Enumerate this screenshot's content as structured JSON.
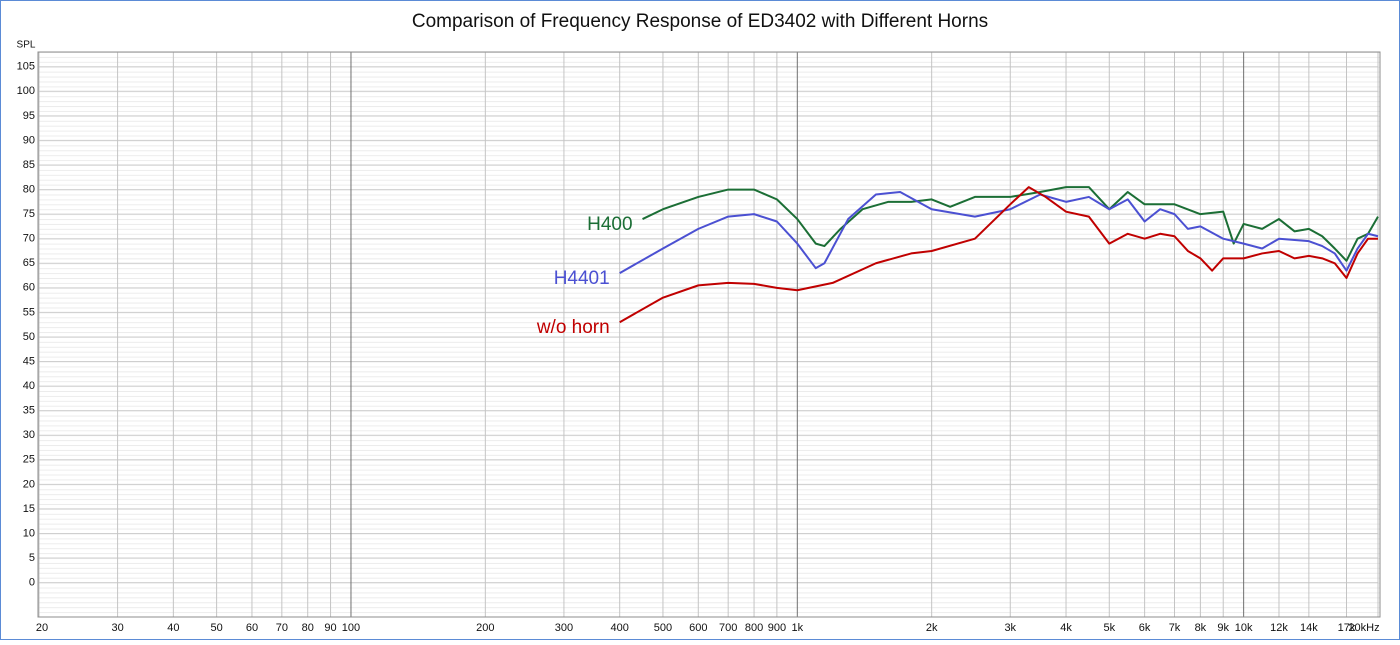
{
  "chart_data": {
    "type": "line",
    "title": "Comparison of Frequency Response of ED3402 with Different Horns",
    "y_label": "SPL",
    "log_x": true,
    "grid": true,
    "xlim": [
      20,
      20000
    ],
    "ylim": [
      -7,
      108
    ],
    "xticks": [
      20,
      30,
      40,
      50,
      60,
      70,
      80,
      90,
      100,
      200,
      300,
      400,
      500,
      600,
      700,
      800,
      900,
      {
        "value": 1000,
        "label": "1k"
      },
      {
        "value": 2000,
        "label": "2k"
      },
      {
        "value": 3000,
        "label": "3k"
      },
      {
        "value": 4000,
        "label": "4k"
      },
      {
        "value": 5000,
        "label": "5k"
      },
      {
        "value": 6000,
        "label": "6k"
      },
      {
        "value": 7000,
        "label": "7k"
      },
      {
        "value": 8000,
        "label": "8k"
      },
      {
        "value": 9000,
        "label": "9k"
      },
      {
        "value": 10000,
        "label": "10k"
      },
      {
        "value": 12000,
        "label": "12k"
      },
      {
        "value": 14000,
        "label": "14k"
      },
      {
        "value": 17000,
        "label": "17k"
      },
      {
        "value": 20000,
        "label": "20kHz"
      }
    ],
    "yticks": [
      0,
      5,
      10,
      15,
      20,
      25,
      30,
      35,
      40,
      45,
      50,
      55,
      60,
      65,
      70,
      75,
      80,
      85,
      90,
      95,
      100,
      105
    ],
    "series": [
      {
        "name": "H400",
        "color": "#1b6e35",
        "x": [
          450,
          500,
          600,
          700,
          800,
          900,
          1000,
          1100,
          1150,
          1250,
          1400,
          1600,
          1800,
          2000,
          2200,
          2500,
          3000,
          3500,
          4000,
          4500,
          5000,
          5500,
          6000,
          7000,
          8000,
          9000,
          9500,
          10000,
          11000,
          12000,
          13000,
          14000,
          15000,
          16000,
          17000,
          18000,
          19000,
          20000
        ],
        "values": [
          74,
          76,
          78.5,
          80,
          80,
          78,
          74,
          69,
          68.5,
          72,
          76,
          77.5,
          77.5,
          78,
          76.5,
          78.5,
          78.5,
          79.5,
          80.5,
          80.5,
          76,
          79.5,
          77,
          77,
          75,
          75.5,
          69,
          73,
          72,
          74,
          71.5,
          72,
          70.5,
          68,
          65.5,
          70,
          71,
          74.5
        ]
      },
      {
        "name": "H4401",
        "color": "#4b50d2",
        "x": [
          400,
          500,
          600,
          700,
          800,
          900,
          1000,
          1100,
          1150,
          1300,
          1500,
          1700,
          2000,
          2500,
          3000,
          3500,
          4000,
          4500,
          5000,
          5500,
          6000,
          6500,
          7000,
          7500,
          8000,
          9000,
          10000,
          11000,
          12000,
          14000,
          15000,
          16000,
          17000,
          18000,
          19000,
          20000
        ],
        "values": [
          63,
          68,
          72,
          74.5,
          75,
          73.5,
          69,
          64,
          65,
          74,
          79,
          79.5,
          76,
          74.5,
          76,
          79,
          77.5,
          78.5,
          76,
          78,
          73.5,
          76,
          75,
          72,
          72.5,
          70,
          69,
          68,
          70,
          69.5,
          68.5,
          67,
          63.5,
          68,
          71,
          70.5
        ]
      },
      {
        "name": "w/o horn",
        "color": "#c00000",
        "x": [
          400,
          500,
          600,
          700,
          800,
          900,
          1000,
          1200,
          1500,
          1800,
          2000,
          2500,
          3000,
          3300,
          3600,
          4000,
          4500,
          5000,
          5500,
          6000,
          6500,
          7000,
          7500,
          8000,
          8500,
          9000,
          10000,
          11000,
          12000,
          13000,
          14000,
          15000,
          16000,
          17000,
          18000,
          19000,
          20000
        ],
        "values": [
          53,
          58,
          60.5,
          61,
          60.8,
          60,
          59.5,
          61,
          65,
          67,
          67.5,
          70,
          77,
          80.5,
          78.5,
          75.5,
          74.5,
          69,
          71,
          70,
          71,
          70.5,
          67.5,
          66,
          63.5,
          66,
          66,
          67,
          67.5,
          66,
          66.5,
          66,
          65,
          62,
          67,
          70,
          70
        ]
      }
    ]
  }
}
